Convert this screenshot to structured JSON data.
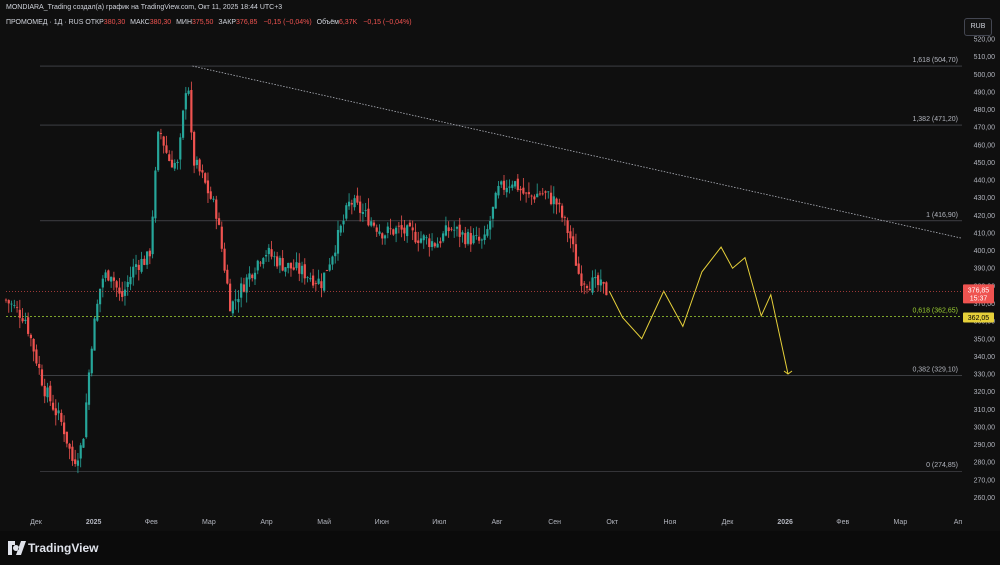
{
  "header": {
    "attribution": "MONDIARA_Trading создал(а) график на TradingView.com, Окт 11, 2025 18:44 UTC+3",
    "symbol": "ПРОМОМЕД · 1Д · RUS",
    "ohlc": [
      {
        "key": "ОТКР",
        "value": "380,30"
      },
      {
        "key": "МАКС",
        "value": "380,30"
      },
      {
        "key": "МИН",
        "value": "375,50"
      },
      {
        "key": "ЗАКР",
        "value": "376,85"
      },
      {
        "key": "",
        "value": "−0,15 (−0,04%)"
      },
      {
        "key": "Объём",
        "value": "6,37K"
      },
      {
        "key": "",
        "value": "−0,15 (−0,04%)"
      }
    ],
    "currency": "RUB"
  },
  "brand": "TradingView",
  "colors": {
    "up": "#26a69a",
    "down": "#ef5350",
    "bg": "#0f0f0f",
    "projection": "#e6d03a",
    "fib": "#787b86",
    "golden": "#9acd32"
  },
  "chart_data": {
    "type": "candlestick",
    "y_ticks": [
      "520,00",
      "510,00",
      "500,00",
      "490,00",
      "480,00",
      "470,00",
      "460,00",
      "450,00",
      "440,00",
      "430,00",
      "420,00",
      "410,00",
      "400,00",
      "390,00",
      "380,00",
      "370,00",
      "360,00",
      "350,00",
      "340,00",
      "330,00",
      "320,00",
      "310,00",
      "300,00",
      "290,00",
      "280,00",
      "270,00",
      "260,00"
    ],
    "y_range": [
      254,
      524
    ],
    "x_labels": [
      "Дек",
      "2025",
      "Фев",
      "Мар",
      "Апр",
      "Май",
      "Июн",
      "Июл",
      "Авг",
      "Сен",
      "Окт",
      "Ноя",
      "Дек",
      "2026",
      "Фев",
      "Мар",
      "Ап"
    ],
    "fib_levels": [
      {
        "label": "1,618 (504,70)",
        "value": 504.7
      },
      {
        "label": "1,382 (471,20)",
        "value": 471.2
      },
      {
        "label": "1 (416,90)",
        "value": 416.9
      },
      {
        "label": "0,618 (362,65)",
        "value": 362.65,
        "golden": true
      },
      {
        "label": "0,382 (329,10)",
        "value": 329.1
      },
      {
        "label": "0 (274,85)",
        "value": 274.85
      }
    ],
    "price_tags": [
      {
        "price": "376,85",
        "timer": "15:37",
        "value": 376.85,
        "color": "#ef5350"
      },
      {
        "price": "362,05",
        "value": 362.05,
        "color": "#e6d03a"
      }
    ],
    "close_path": [
      [
        0,
        372
      ],
      [
        0.02,
        362
      ],
      [
        0.04,
        322
      ],
      [
        0.06,
        300
      ],
      [
        0.07,
        280
      ],
      [
        0.08,
        290
      ],
      [
        0.09,
        350
      ],
      [
        0.1,
        384
      ],
      [
        0.11,
        388
      ],
      [
        0.12,
        372
      ],
      [
        0.135,
        392
      ],
      [
        0.15,
        396
      ],
      [
        0.16,
        470
      ],
      [
        0.17,
        452
      ],
      [
        0.18,
        448
      ],
      [
        0.19,
        503
      ],
      [
        0.195,
        452
      ],
      [
        0.205,
        442
      ],
      [
        0.22,
        422
      ],
      [
        0.235,
        368
      ],
      [
        0.25,
        382
      ],
      [
        0.27,
        400
      ],
      [
        0.29,
        392
      ],
      [
        0.31,
        388
      ],
      [
        0.33,
        382
      ],
      [
        0.345,
        404
      ],
      [
        0.36,
        428
      ],
      [
        0.38,
        418
      ],
      [
        0.395,
        410
      ],
      [
        0.41,
        412
      ],
      [
        0.43,
        408
      ],
      [
        0.45,
        404
      ],
      [
        0.465,
        413
      ],
      [
        0.48,
        408
      ],
      [
        0.5,
        404
      ],
      [
        0.515,
        434
      ],
      [
        0.53,
        440
      ],
      [
        0.545,
        430
      ],
      [
        0.56,
        433
      ],
      [
        0.575,
        428
      ],
      [
        0.59,
        408
      ],
      [
        0.6,
        385
      ],
      [
        0.61,
        382
      ],
      [
        0.62,
        380
      ],
      [
        0.628,
        377
      ]
    ],
    "projection": [
      [
        0.631,
        377
      ],
      [
        0.645,
        362
      ],
      [
        0.665,
        350
      ],
      [
        0.688,
        377
      ],
      [
        0.708,
        357
      ],
      [
        0.728,
        388
      ],
      [
        0.748,
        402
      ],
      [
        0.76,
        390
      ],
      [
        0.773,
        396
      ],
      [
        0.79,
        363
      ],
      [
        0.8,
        375
      ],
      [
        0.818,
        330
      ]
    ],
    "trendline": [
      [
        0.195,
        504.7
      ],
      [
        1.0,
        407
      ]
    ]
  }
}
